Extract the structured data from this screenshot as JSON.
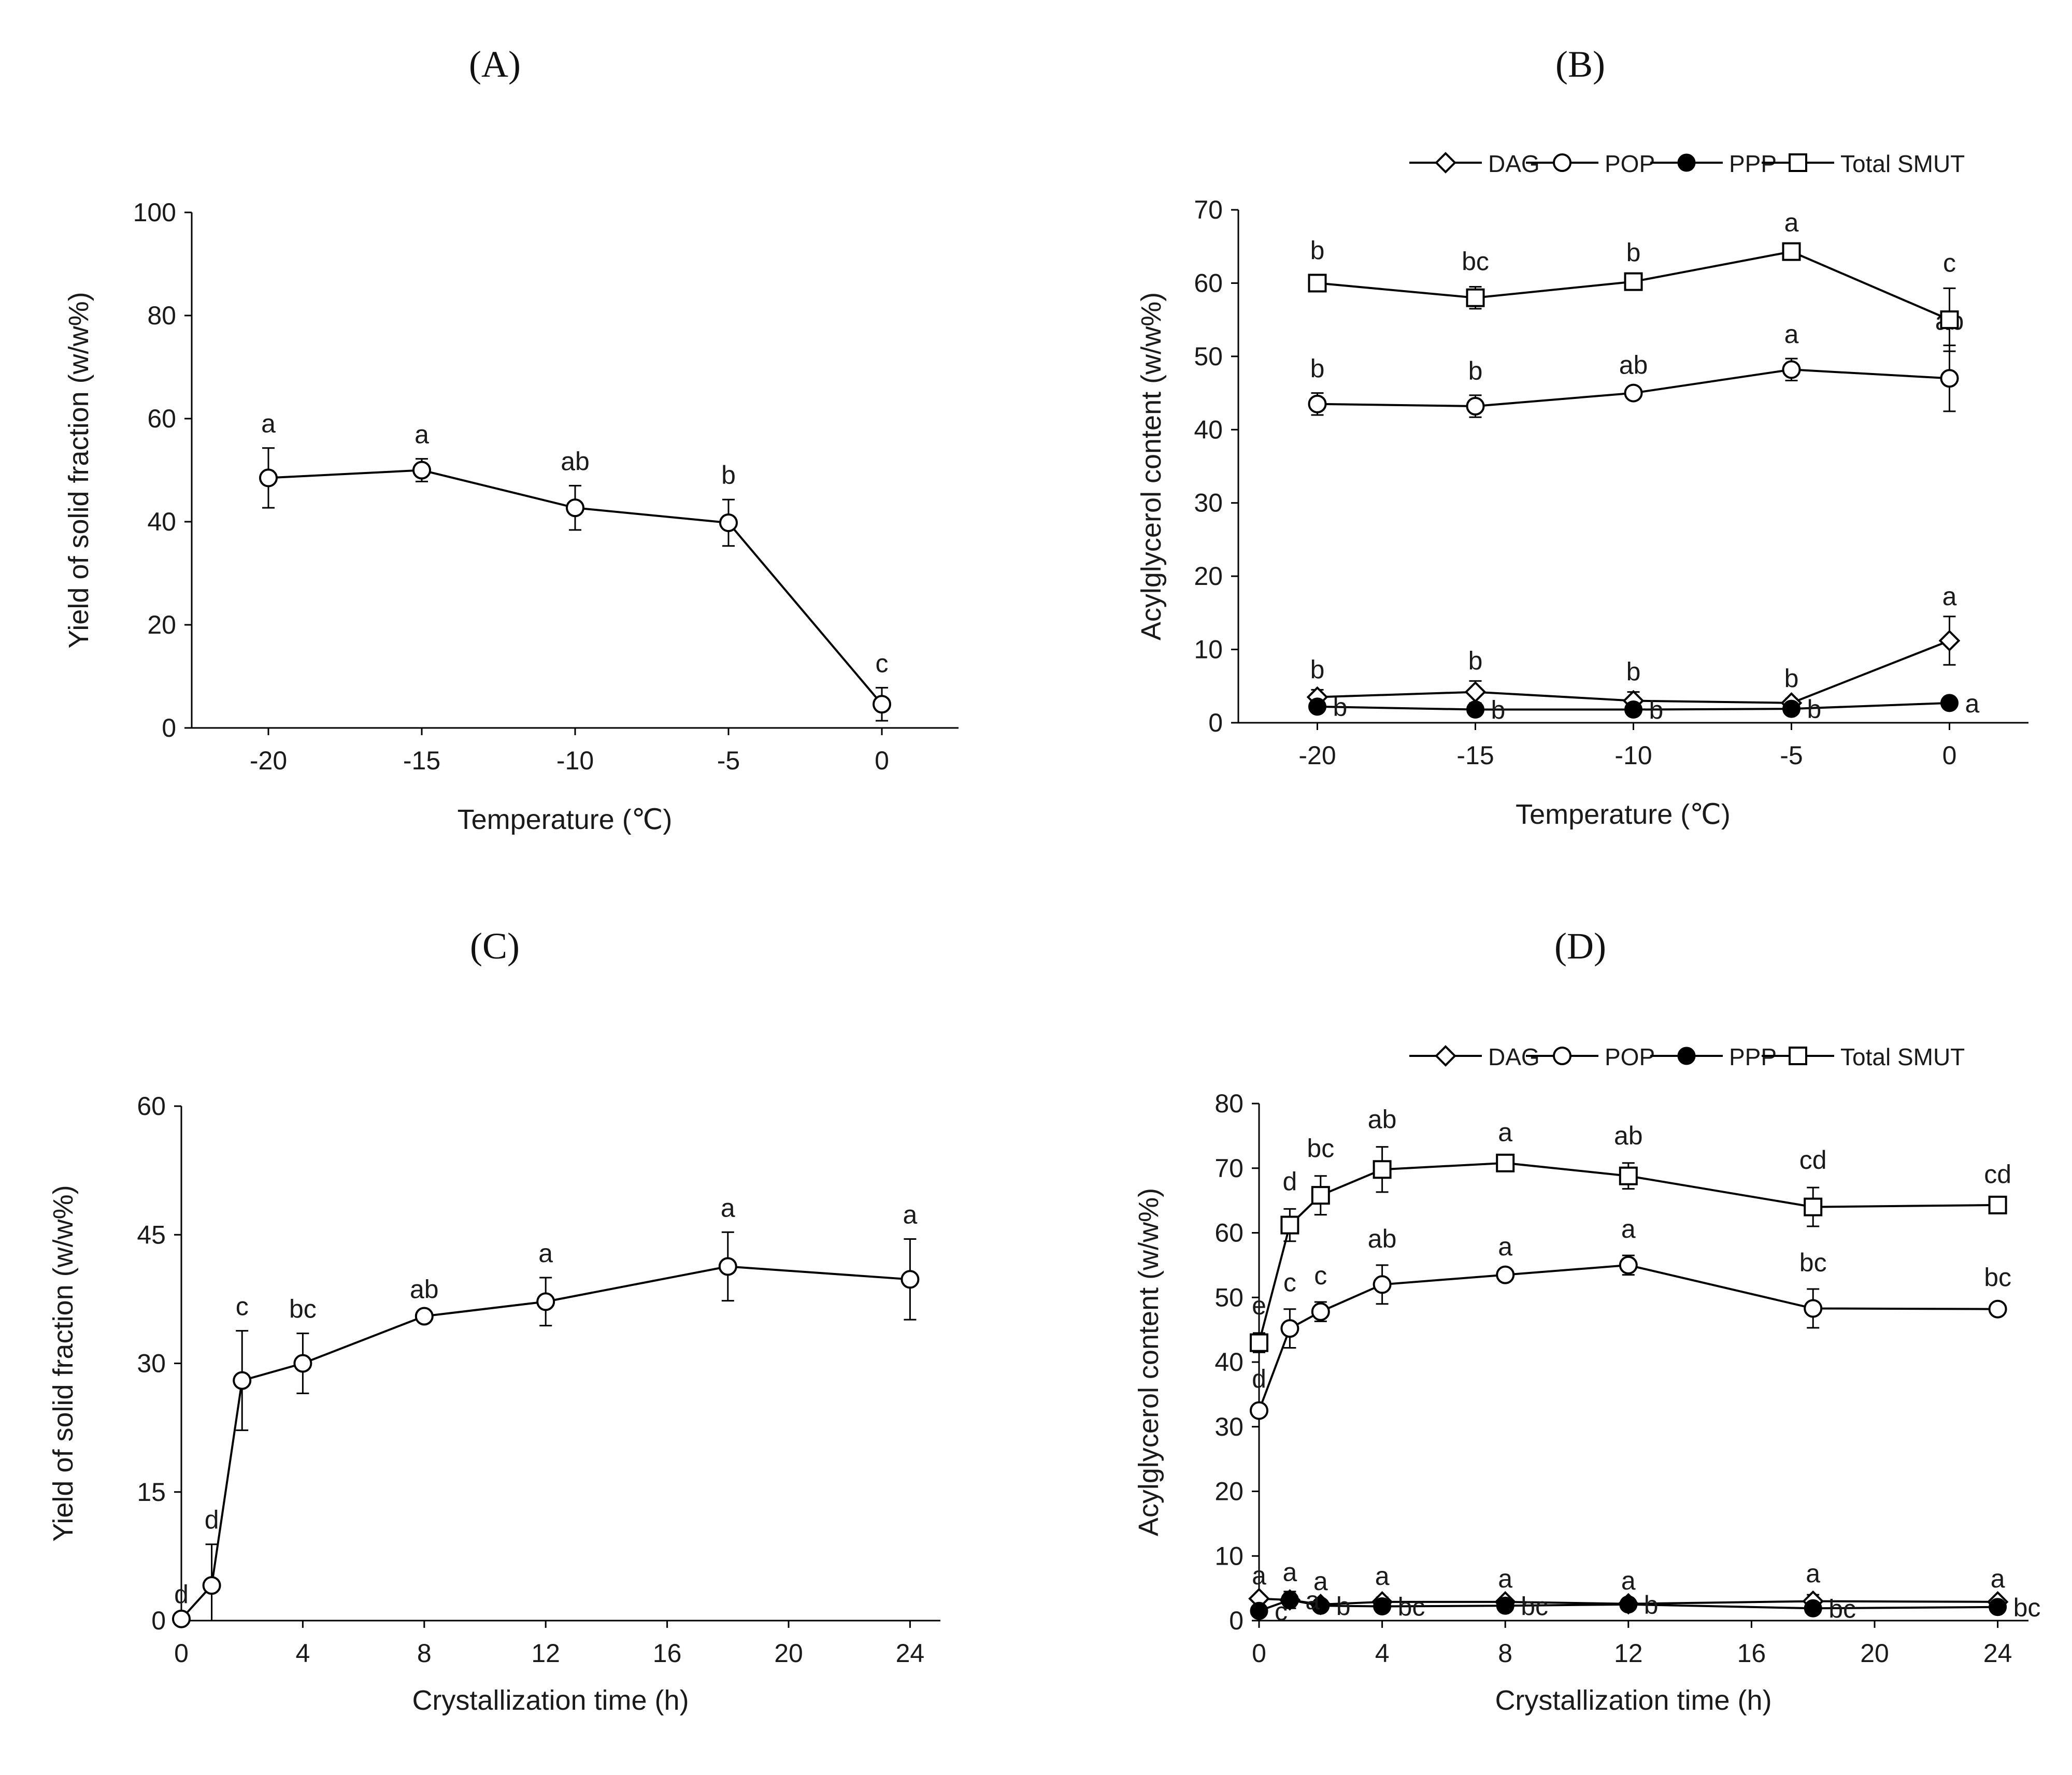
{
  "chart_data": [
    {
      "type": "line",
      "panel": "(A)",
      "title": "(A)",
      "xlabel": "Temperature (℃)",
      "ylabel": "Yield of solid fraction (w/w%)",
      "xlim": [
        -22.5,
        2.5
      ],
      "ylim": [
        0,
        100
      ],
      "xticks": [
        -20,
        -15,
        -10,
        -5,
        0
      ],
      "xtick_labels": [
        "-20",
        "-15",
        "-10",
        "-5",
        "0"
      ],
      "yticks": [
        0,
        20,
        40,
        60,
        80,
        100
      ],
      "ytick_labels": [
        "0",
        "20",
        "40",
        "60",
        "80",
        "100"
      ],
      "legend": null,
      "x": [
        -20,
        -15,
        -10,
        -5,
        0
      ],
      "series": [
        {
          "name": "Yield",
          "marker": "open-circle",
          "values": [
            48.5,
            50,
            42.7,
            39.8,
            4.6
          ],
          "errors": [
            5.8,
            2.2,
            4.3,
            4.5,
            3.2
          ],
          "letters": [
            "a",
            "a",
            "ab",
            "b",
            "c"
          ]
        }
      ]
    },
    {
      "type": "line",
      "panel": "(B)",
      "title": "(B)",
      "xlabel": "Temperature (℃)",
      "ylabel": "Acylglycerol content (w/w%)",
      "xlim": [
        -22.5,
        2.5
      ],
      "ylim": [
        0,
        70
      ],
      "xticks": [
        -20,
        -15,
        -10,
        -5,
        0
      ],
      "xtick_labels": [
        "-20",
        "-15",
        "-10",
        "-5",
        "0"
      ],
      "yticks": [
        0,
        10,
        20,
        30,
        40,
        50,
        60,
        70
      ],
      "ytick_labels": [
        "0",
        "10",
        "20",
        "30",
        "40",
        "50",
        "60",
        "70"
      ],
      "legend": "top",
      "x": [
        -20,
        -15,
        -10,
        -5,
        0
      ],
      "series": [
        {
          "name": "DAG",
          "marker": "open-diamond",
          "values": [
            3.5,
            4.2,
            3.0,
            2.7,
            11.2
          ],
          "errors": [
            1.0,
            1.5,
            1.2,
            0.6,
            3.3
          ],
          "letters": [
            "b",
            "b",
            "b",
            "b",
            "a"
          ]
        },
        {
          "name": "POP",
          "marker": "open-circle",
          "values": [
            43.5,
            43.2,
            45.0,
            48.2,
            47.0
          ],
          "errors": [
            1.5,
            1.5,
            0.5,
            1.5,
            4.5
          ],
          "letters": [
            "b",
            "b",
            "ab",
            "a",
            "ab"
          ]
        },
        {
          "name": "PPP",
          "marker": "filled-circle",
          "values": [
            2.2,
            1.8,
            1.8,
            1.9,
            2.7
          ],
          "errors": [
            0.3,
            0.3,
            0.3,
            0.3,
            0.3
          ],
          "letters": [
            "b",
            "b",
            "b",
            "b",
            "a"
          ]
        },
        {
          "name": "Total SMUT",
          "marker": "open-square",
          "values": [
            60.0,
            58.0,
            60.2,
            64.3,
            55.0
          ],
          "errors": [
            1.0,
            1.5,
            0.5,
            0.5,
            4.3
          ],
          "letters": [
            "b",
            "bc",
            "b",
            "a",
            "c"
          ]
        }
      ]
    },
    {
      "type": "line",
      "panel": "(C)",
      "title": "(C)",
      "xlabel": "Crystallization time (h)",
      "ylabel": "Yield of solid fraction (w/w%)",
      "xlim": [
        0,
        25
      ],
      "ylim": [
        0,
        60
      ],
      "xticks": [
        0,
        4,
        8,
        12,
        16,
        20,
        24
      ],
      "xtick_labels": [
        "0",
        "4",
        "8",
        "12",
        "16",
        "20",
        "24"
      ],
      "yticks": [
        0,
        15,
        30,
        45,
        60
      ],
      "ytick_labels": [
        "0",
        "15",
        "30",
        "45",
        "60"
      ],
      "legend": null,
      "x": [
        0,
        1,
        2,
        4,
        8,
        12,
        18,
        24
      ],
      "series": [
        {
          "name": "Yield",
          "marker": "open-circle",
          "values": [
            0.2,
            4.1,
            28,
            30,
            35.5,
            37.2,
            41.3,
            39.8
          ],
          "errors": [
            0,
            4.8,
            5.8,
            3.5,
            0.3,
            2.8,
            4.0,
            4.7
          ],
          "letters": [
            "d",
            "d",
            "c",
            "bc",
            "ab",
            "a",
            "a",
            "a"
          ]
        }
      ]
    },
    {
      "type": "line",
      "panel": "(D)",
      "title": "(D)",
      "xlabel": "Crystallization time (h)",
      "ylabel": "Acylglycerol content (w/w%)",
      "xlim": [
        0,
        25
      ],
      "ylim": [
        0,
        80
      ],
      "xticks": [
        0,
        4,
        8,
        12,
        16,
        20,
        24
      ],
      "xtick_labels": [
        "0",
        "4",
        "8",
        "12",
        "16",
        "20",
        "24"
      ],
      "yticks": [
        0,
        10,
        20,
        30,
        40,
        50,
        60,
        70,
        80
      ],
      "ytick_labels": [
        "0",
        "10",
        "20",
        "30",
        "40",
        "50",
        "60",
        "70",
        "80"
      ],
      "legend": "top",
      "x": [
        0,
        1,
        2,
        4,
        8,
        12,
        18,
        24
      ],
      "series": [
        {
          "name": "DAG",
          "marker": "open-diamond",
          "values": [
            3.4,
            3.2,
            2.5,
            2.9,
            2.9,
            2.6,
            3.0,
            2.9
          ],
          "errors": [
            0.3,
            1.0,
            0.3,
            0.7,
            0.3,
            0.3,
            1.0,
            0.3
          ],
          "letters": [
            "a",
            "a",
            "a",
            "a",
            "a",
            "a",
            "a",
            "a"
          ]
        },
        {
          "name": "POP",
          "marker": "open-circle",
          "values": [
            32.5,
            45.2,
            47.8,
            52.0,
            53.5,
            55.0,
            48.3,
            48.2
          ],
          "errors": [
            0.8,
            3.0,
            1.5,
            3.0,
            0.3,
            1.5,
            3.0,
            0.8
          ],
          "letters": [
            "d",
            "c",
            "c",
            "ab",
            "a",
            "a",
            "bc",
            "bc"
          ]
        },
        {
          "name": "PPP",
          "marker": "filled-circle",
          "values": [
            1.5,
            3.2,
            2.3,
            2.2,
            2.3,
            2.5,
            1.9,
            2.1
          ],
          "errors": [
            0.3,
            1.3,
            0.3,
            0.3,
            0.3,
            0.3,
            0.3,
            0.3
          ],
          "letters": [
            "c",
            "a",
            "b",
            "bc",
            "bc",
            "b",
            "bc",
            "bc"
          ]
        },
        {
          "name": "Total SMUT",
          "marker": "open-square",
          "values": [
            43.0,
            61.2,
            65.8,
            69.8,
            70.8,
            68.8,
            64.0,
            64.3
          ],
          "errors": [
            1.5,
            2.5,
            3.0,
            3.5,
            0.5,
            2.0,
            3.0,
            0.5
          ],
          "letters": [
            "e",
            "d",
            "bc",
            "ab",
            "a",
            "ab",
            "cd",
            "cd"
          ]
        }
      ]
    }
  ]
}
